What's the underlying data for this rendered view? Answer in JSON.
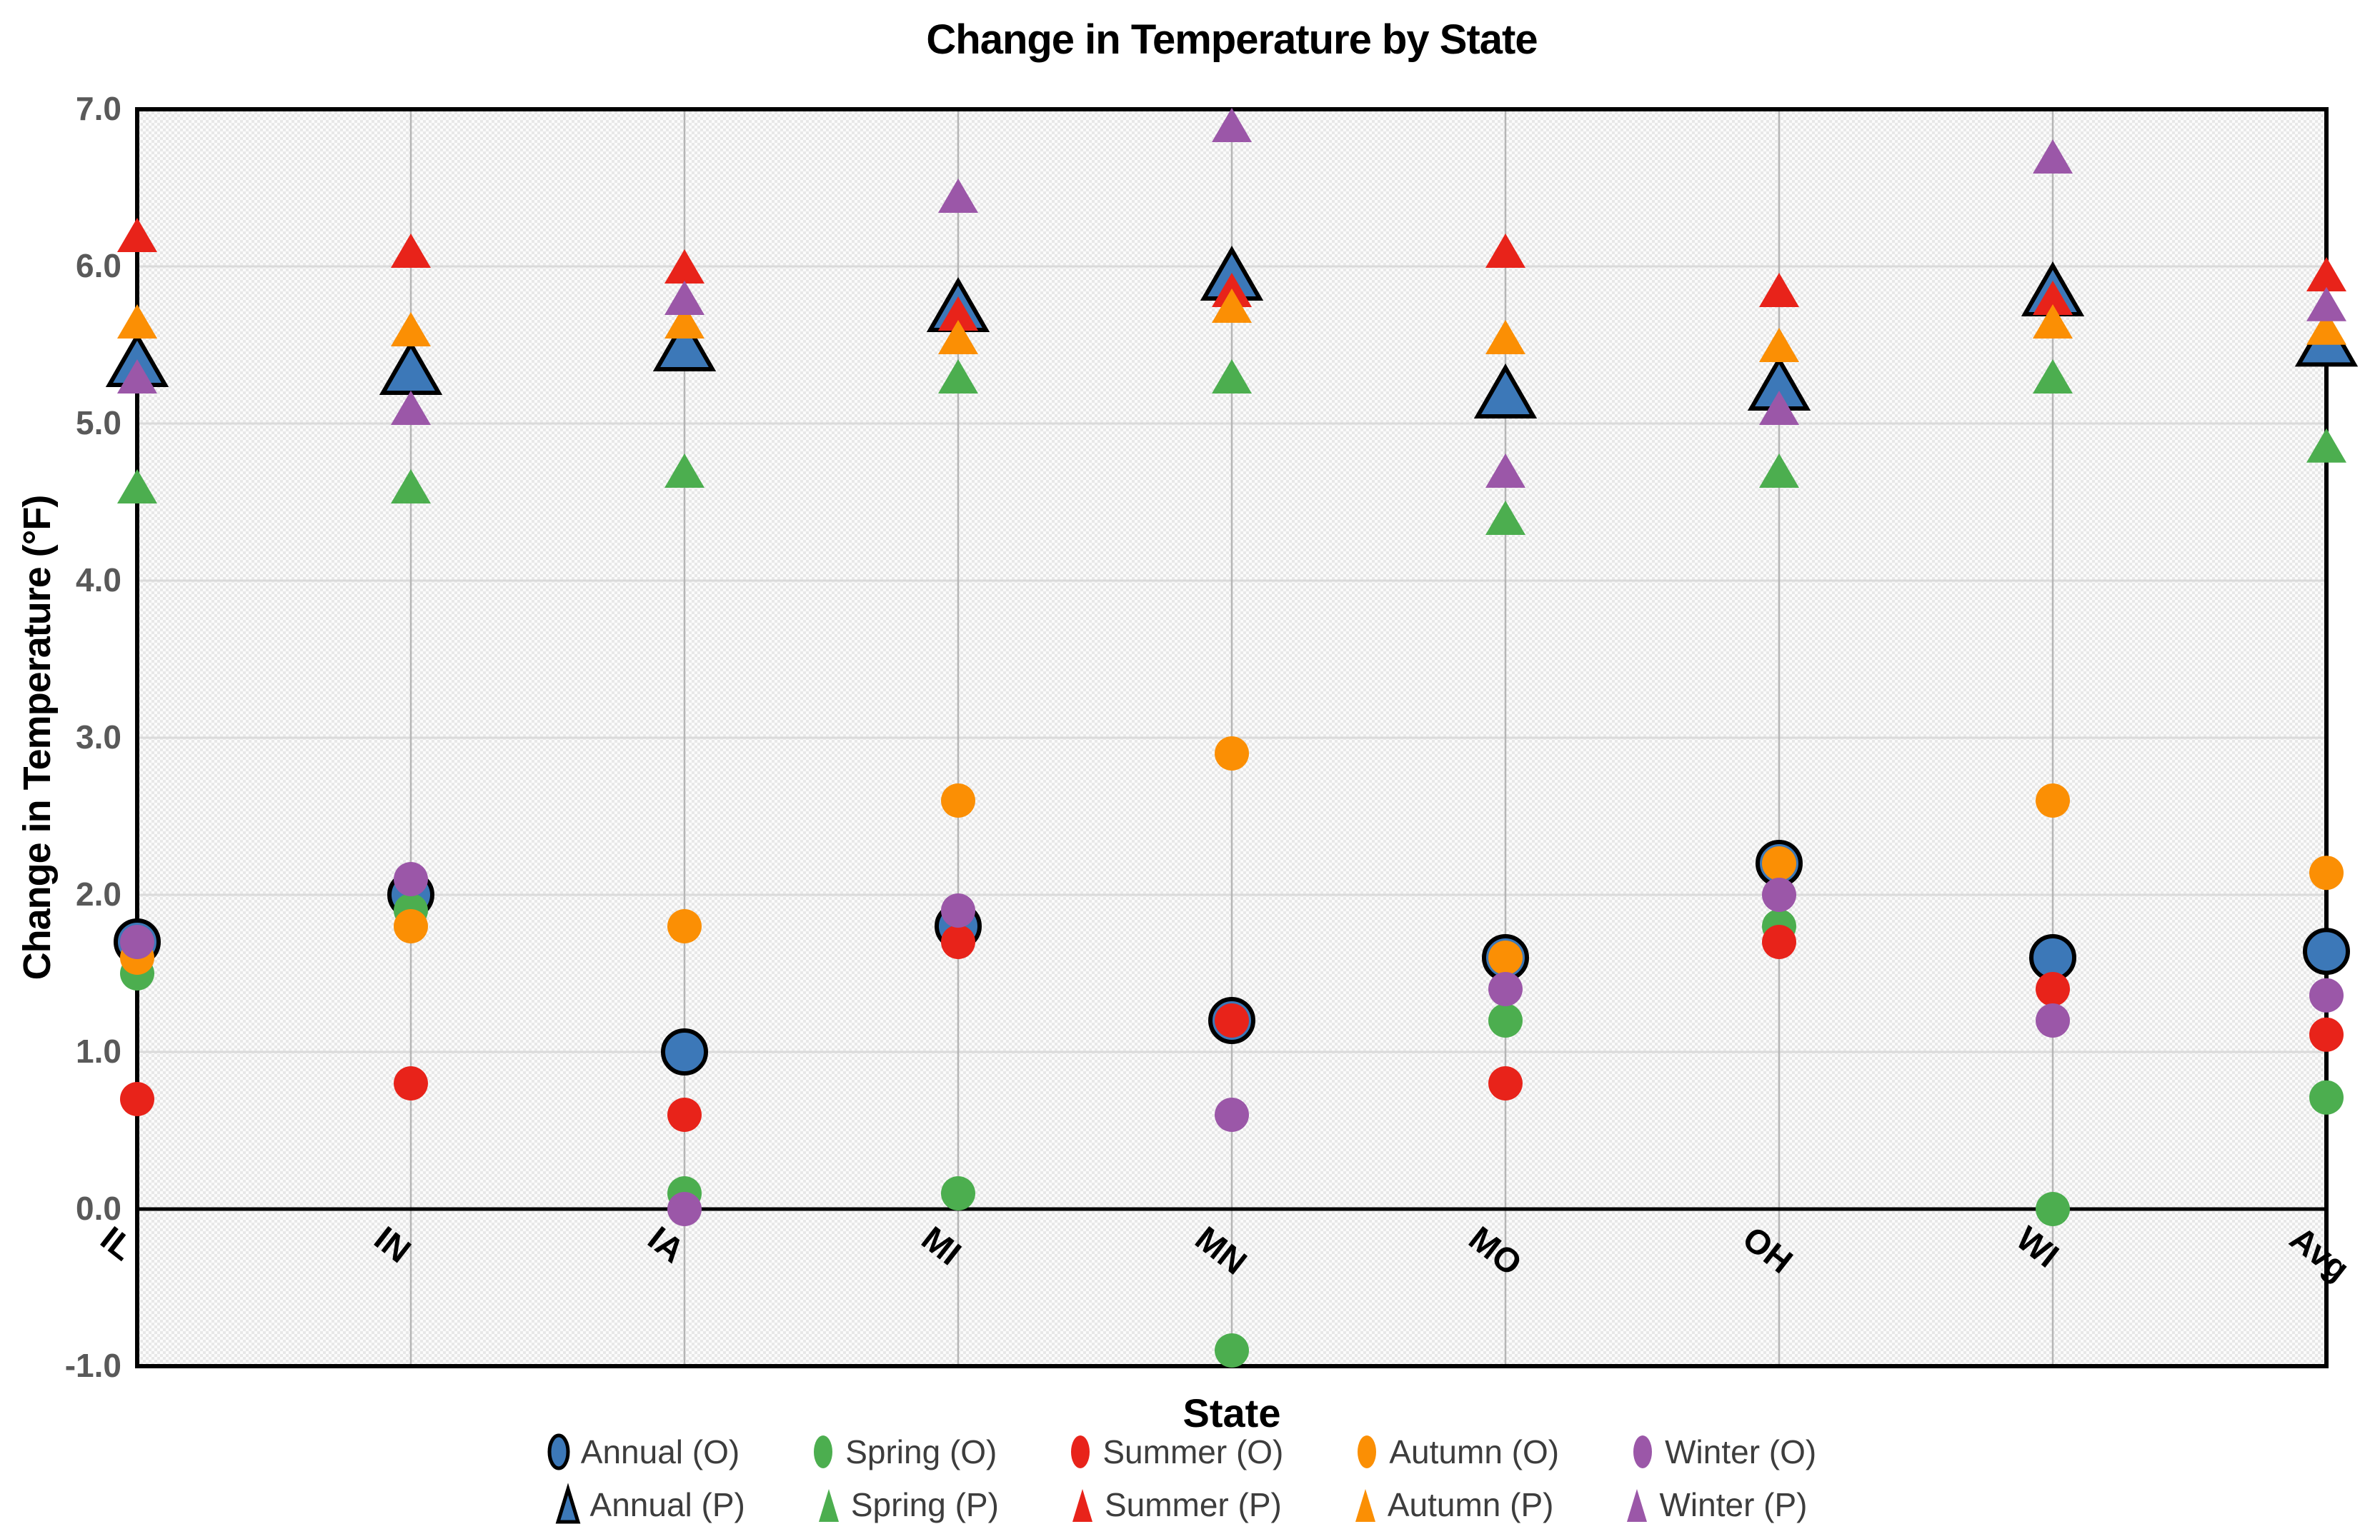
{
  "chart_data": {
    "type": "scatter",
    "title": "Change in Temperature by State",
    "xlabel": "State",
    "ylabel": "Change in Temperature (°F)",
    "ylim": [
      -1.0,
      7.0
    ],
    "ytick_step": 1.0,
    "y_tick_labels": [
      "7.0",
      "6.0",
      "5.0",
      "4.0",
      "3.0",
      "2.0",
      "1.0",
      "0.0",
      "-1.0"
    ],
    "grid": {
      "horizontal": true,
      "vertical": true,
      "zero_line": true
    },
    "plot_background": "light-gray-dotted-pattern",
    "legend_position": "bottom-two-rows",
    "categories": [
      "IL",
      "IN",
      "IA",
      "MI",
      "MN",
      "MO",
      "OH",
      "WI",
      "Avg"
    ],
    "series": [
      {
        "name": "Annual (O)",
        "marker": "circle",
        "color": "#3c78b8",
        "outlined": true,
        "values": [
          1.7,
          2.0,
          1.0,
          1.8,
          1.2,
          1.6,
          2.2,
          1.6,
          1.64
        ]
      },
      {
        "name": "Spring (O)",
        "marker": "circle",
        "color": "#4cae4f",
        "outlined": false,
        "values": [
          1.5,
          1.9,
          0.1,
          0.1,
          -0.9,
          1.2,
          1.8,
          0.0,
          0.71
        ]
      },
      {
        "name": "Summer (O)",
        "marker": "circle",
        "color": "#e8231a",
        "outlined": false,
        "values": [
          0.7,
          0.8,
          0.6,
          1.7,
          1.2,
          0.8,
          1.7,
          1.4,
          1.11
        ]
      },
      {
        "name": "Autumn (O)",
        "marker": "circle",
        "color": "#fb8f04",
        "outlined": false,
        "values": [
          1.6,
          1.8,
          1.8,
          2.6,
          2.9,
          1.6,
          2.2,
          2.6,
          2.14
        ]
      },
      {
        "name": "Winter (O)",
        "marker": "circle",
        "color": "#9b57a8",
        "outlined": false,
        "values": [
          1.7,
          2.1,
          0.0,
          1.9,
          0.6,
          1.4,
          2.0,
          1.2,
          1.36
        ]
      },
      {
        "name": "Annual (P)",
        "marker": "triangle",
        "color": "#3c78b8",
        "outlined": true,
        "values": [
          5.4,
          5.35,
          5.5,
          5.75,
          5.95,
          5.2,
          5.25,
          5.85,
          5.53
        ]
      },
      {
        "name": "Spring (P)",
        "marker": "triangle",
        "color": "#4cae4f",
        "outlined": false,
        "values": [
          4.6,
          4.6,
          4.7,
          5.3,
          5.3,
          4.4,
          4.7,
          5.3,
          4.86
        ]
      },
      {
        "name": "Summer (P)",
        "marker": "triangle",
        "color": "#e8231a",
        "outlined": false,
        "values": [
          6.2,
          6.1,
          6.0,
          5.7,
          5.85,
          6.1,
          5.85,
          5.8,
          5.95
        ]
      },
      {
        "name": "Autumn (P)",
        "marker": "triangle",
        "color": "#fb8f04",
        "outlined": false,
        "values": [
          5.65,
          5.6,
          5.65,
          5.55,
          5.75,
          5.55,
          5.5,
          5.65,
          5.61
        ]
      },
      {
        "name": "Winter (P)",
        "marker": "triangle",
        "color": "#9b57a8",
        "outlined": false,
        "values": [
          5.3,
          5.1,
          5.8,
          6.45,
          6.9,
          4.7,
          5.1,
          6.7,
          5.76
        ]
      }
    ],
    "legend_rows": [
      [
        "Annual (O)",
        "Spring (O)",
        "Summer (O)",
        "Autumn (O)",
        "Winter (O)"
      ],
      [
        "Annual (P)",
        "Spring (P)",
        "Summer (P)",
        "Autumn (P)",
        "Winter (P)"
      ]
    ]
  },
  "style": {
    "tick_label_color": "#595959",
    "legend_text_color": "#3d3d3d",
    "vertical_gridline_color": "#b5b5b5",
    "horizontal_gridline_color": "#dadada",
    "axis_color": "#000000"
  }
}
